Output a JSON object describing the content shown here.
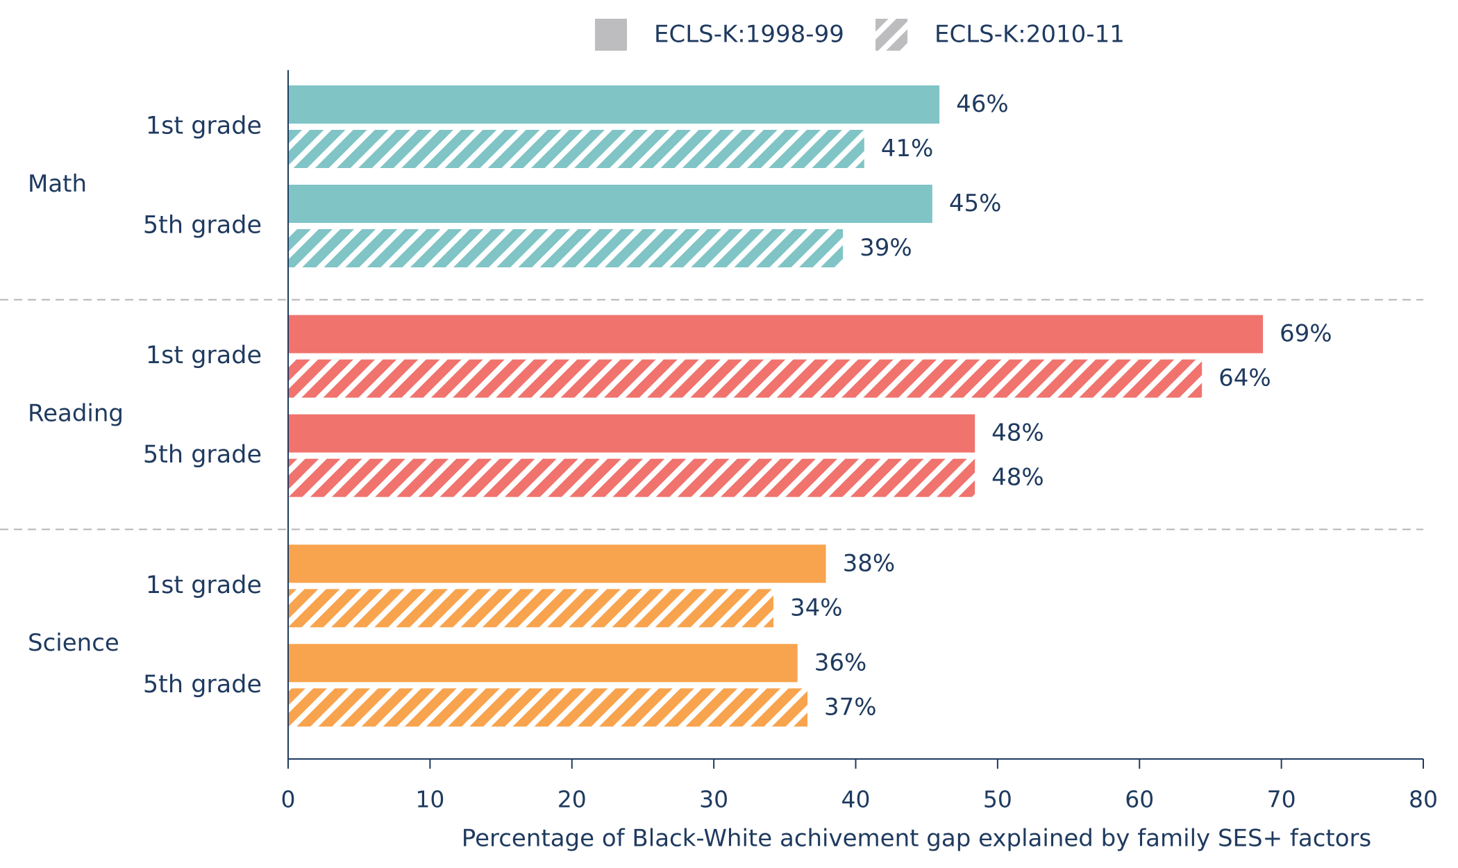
{
  "chart_data": {
    "type": "bar",
    "orientation": "horizontal",
    "groups": [
      {
        "name": "Math",
        "color": "#80c4c6",
        "categories": [
          "1st grade",
          "5th grade"
        ]
      },
      {
        "name": "Reading",
        "color": "#f0736e",
        "categories": [
          "1st grade",
          "5th grade"
        ]
      },
      {
        "name": "Science",
        "color": "#f8a34d",
        "categories": [
          "1st grade",
          "5th grade"
        ]
      }
    ],
    "series": [
      {
        "name": "ECLS-K:1998-99",
        "color": "#bdbdbf",
        "pattern": "solid",
        "values": [
          45.9,
          45.4,
          68.7,
          48.4,
          37.9,
          35.9
        ],
        "value_labels": [
          "46%",
          "45%",
          "69%",
          "48%",
          "38%",
          "36%"
        ]
      },
      {
        "name": "ECLS-K:2010-11",
        "color": "#bdbdbf",
        "pattern": "hatched",
        "values": [
          40.6,
          39.1,
          64.4,
          48.4,
          34.2,
          36.6
        ],
        "value_labels": [
          "41%",
          "39%",
          "64%",
          "48%",
          "34%",
          "37%"
        ]
      }
    ],
    "xlabel": "Percentage of Black-White achivement gap explained by family SES+ factors",
    "xlim": [
      0,
      80
    ],
    "xticks": [
      0,
      10,
      20,
      30,
      40,
      50,
      60,
      70,
      80
    ]
  }
}
